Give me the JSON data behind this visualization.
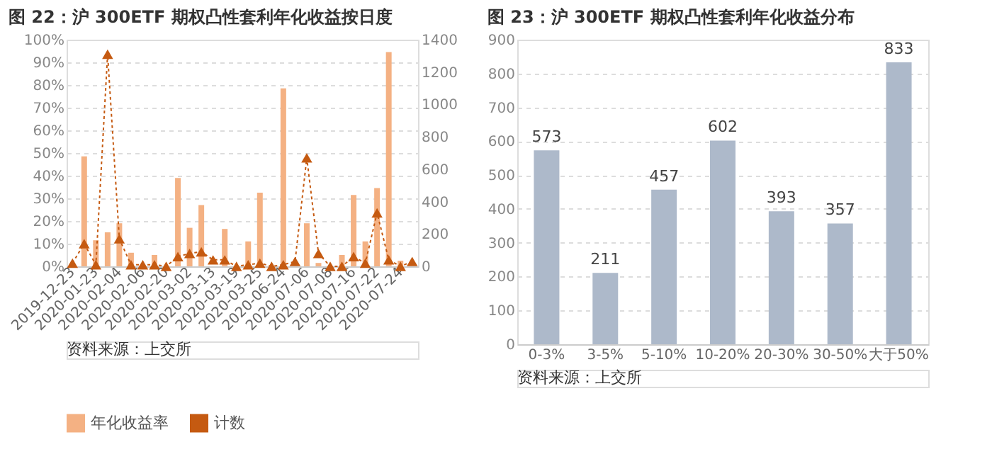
{
  "chart_data": [
    {
      "type": "bar",
      "title": "图 22：沪 300ETF 期权凸性套利年化收益按日度",
      "categories": [
        "2019-12-23",
        null,
        "2020-01-23",
        null,
        "2020-02-04",
        null,
        "2020-02-06",
        null,
        "2020-02-20",
        null,
        "2020-03-02",
        null,
        "2020-03-13",
        null,
        "2020-03-19",
        null,
        "2020-03-25",
        null,
        "2020-06-24",
        null,
        "2020-07-06",
        null,
        "2020-07-08",
        null,
        "2020-07-16",
        null,
        "2020-07-22",
        null,
        "2020-07-24",
        null
      ],
      "series": [
        {
          "name": "年化收益率",
          "type": "bar",
          "color": "#f4b183",
          "values": [
            0.5,
            48.5,
            11.5,
            15,
            19,
            6,
            null,
            5,
            null,
            39,
            17,
            27,
            null,
            16.5,
            null,
            11,
            32.5,
            null,
            78.5,
            null,
            19,
            1.5,
            null,
            5,
            31.5,
            11,
            34.5,
            94.5,
            2.5,
            null
          ]
        },
        {
          "name": "计数",
          "type": "line",
          "axis": "y2",
          "color": "#c55a11",
          "marker": "triangle",
          "line_style": "dotted",
          "values": [
            20,
            140,
            10,
            1310,
            170,
            10,
            10,
            10,
            0,
            60,
            80,
            90,
            40,
            40,
            0,
            10,
            20,
            0,
            10,
            30,
            670,
            80,
            0,
            0,
            60,
            20,
            330,
            40,
            0,
            30
          ]
        }
      ],
      "ylim": [
        0,
        100
      ],
      "yticks": [
        {
          "value": 0,
          "label": "0%"
        },
        {
          "value": 10,
          "label": "10%"
        },
        {
          "value": 20,
          "label": "20%"
        },
        {
          "value": 30,
          "label": "30%"
        },
        {
          "value": 40,
          "label": "40%"
        },
        {
          "value": 50,
          "label": "50%"
        },
        {
          "value": 60,
          "label": "60%"
        },
        {
          "value": 70,
          "label": "70%"
        },
        {
          "value": 80,
          "label": "80%"
        },
        {
          "value": 90,
          "label": "90%"
        },
        {
          "value": 100,
          "label": "100%"
        }
      ],
      "y2lim": [
        0,
        1400
      ],
      "y2ticks": [
        0,
        200,
        400,
        600,
        800,
        1000,
        1200,
        1400
      ],
      "grid": "y",
      "legend": "bottom",
      "annotations": [
        "资料来源：上交所"
      ]
    },
    {
      "type": "bar",
      "title": "图 23：沪 300ETF 期权凸性套利年化收益分布",
      "categories": [
        "0-3%",
        "3-5%",
        "5-10%",
        "10-20%",
        "20-30%",
        "30-50%",
        "大于50%"
      ],
      "values": [
        573,
        211,
        457,
        602,
        393,
        357,
        833
      ],
      "color": "#adb9ca",
      "ylim": [
        0,
        900
      ],
      "yticks": [
        0,
        100,
        200,
        300,
        400,
        500,
        600,
        700,
        800,
        900
      ],
      "data_labels": true,
      "grid": "y",
      "annotations": [
        "资料来源：上交所"
      ]
    }
  ]
}
